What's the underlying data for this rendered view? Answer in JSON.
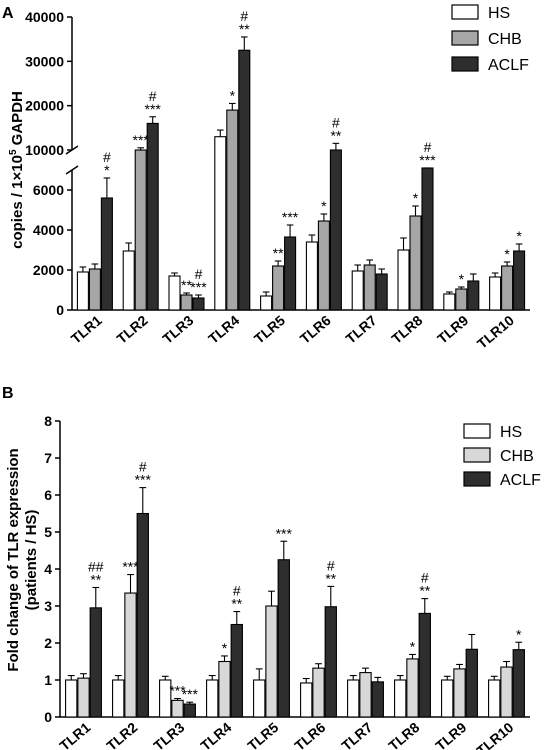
{
  "chart_data": [
    {
      "panel": "A",
      "type": "bar",
      "ylabel_pre": "copies / 1×10",
      "ylabel_exp": "5",
      "ylabel_post": " GAPDH",
      "axis_break": true,
      "ylim_lower": [
        0,
        7000
      ],
      "ylim_upper": [
        10000,
        40000
      ],
      "yticks_lower": [
        "0",
        "2000",
        "4000",
        "6000"
      ],
      "yticks_upper": [
        "10000",
        "20000",
        "30000",
        "40000"
      ],
      "categories": [
        "TLR1",
        "TLR2",
        "TLR3",
        "TLR4",
        "TLR5",
        "TLR6",
        "TLR7",
        "TLR8",
        "TLR9",
        "TLR10"
      ],
      "series": [
        {
          "name": "HS",
          "color": "#ffffff",
          "values": [
            1900,
            2950,
            1700,
            13000,
            700,
            3400,
            1950,
            3000,
            800,
            1650
          ],
          "errors": [
            250,
            400,
            150,
            1500,
            200,
            350,
            300,
            600,
            100,
            200
          ],
          "annotations": [
            "",
            "",
            "",
            "",
            "",
            "",
            "",
            "",
            "",
            ""
          ]
        },
        {
          "name": "CHB",
          "color": "#a6a6a6",
          "values": [
            2050,
            10000,
            750,
            19000,
            2200,
            4450,
            2250,
            4700,
            1050,
            2200
          ],
          "errors": [
            250,
            500,
            100,
            1500,
            250,
            350,
            250,
            500,
            100,
            200
          ],
          "annotations": [
            "",
            "***",
            "**",
            "*",
            "**",
            "*",
            "",
            "*",
            "*",
            "*"
          ]
        },
        {
          "name": "ACLF",
          "color": "#2e2e2e",
          "values": [
            5600,
            16000,
            600,
            32500,
            3650,
            10000,
            1800,
            8500,
            1450,
            2950
          ],
          "errors": [
            1000,
            1500,
            150,
            3000,
            600,
            1500,
            250,
            800,
            350,
            350
          ],
          "annotations": [
            "#\n*",
            "#\n***",
            "#\n***",
            "#\n**",
            "***",
            "#\n**",
            "",
            "#\n***",
            "",
            "*"
          ]
        }
      ]
    },
    {
      "panel": "B",
      "type": "bar",
      "ylabel_line1": "Fold change of TLR expression",
      "ylabel_line2": "(patients / HS)",
      "ylim": [
        0,
        8
      ],
      "yticks": [
        "0",
        "1",
        "2",
        "3",
        "4",
        "5",
        "6",
        "7",
        "8"
      ],
      "categories": [
        "TLR1",
        "TLR2",
        "TLR3",
        "TLR4",
        "TLR5",
        "TLR6",
        "TLR7",
        "TLR8",
        "TLR9",
        "TLR10"
      ],
      "series": [
        {
          "name": "HS",
          "color": "#ffffff",
          "values": [
            1.0,
            1.0,
            1.0,
            1.0,
            1.0,
            0.92,
            1.0,
            1.0,
            1.0,
            1.0
          ],
          "errors": [
            0.12,
            0.12,
            0.1,
            0.12,
            0.3,
            0.12,
            0.12,
            0.12,
            0.1,
            0.1
          ],
          "annotations": [
            "",
            "",
            "",
            "",
            "",
            "",
            "",
            "",
            "",
            ""
          ]
        },
        {
          "name": "CHB",
          "color": "#d8d8d8",
          "values": [
            1.05,
            3.35,
            0.45,
            1.5,
            3.0,
            1.32,
            1.2,
            1.57,
            1.3,
            1.35
          ],
          "errors": [
            0.12,
            0.5,
            0.05,
            0.15,
            0.4,
            0.12,
            0.12,
            0.12,
            0.12,
            0.15
          ],
          "annotations": [
            "",
            "***",
            "***",
            "*",
            "",
            "",
            "",
            "*",
            "",
            ""
          ]
        },
        {
          "name": "ACLF",
          "color": "#2e2e2e",
          "values": [
            2.95,
            5.5,
            0.35,
            2.5,
            4.25,
            2.98,
            0.95,
            2.8,
            1.83,
            1.82
          ],
          "errors": [
            0.55,
            0.7,
            0.05,
            0.35,
            0.5,
            0.55,
            0.12,
            0.4,
            0.4,
            0.2
          ],
          "annotations": [
            "##\n**",
            "#\n***",
            "***",
            "#\n**",
            "***",
            "#\n**",
            "",
            "#\n**",
            "",
            "*"
          ]
        }
      ]
    }
  ]
}
